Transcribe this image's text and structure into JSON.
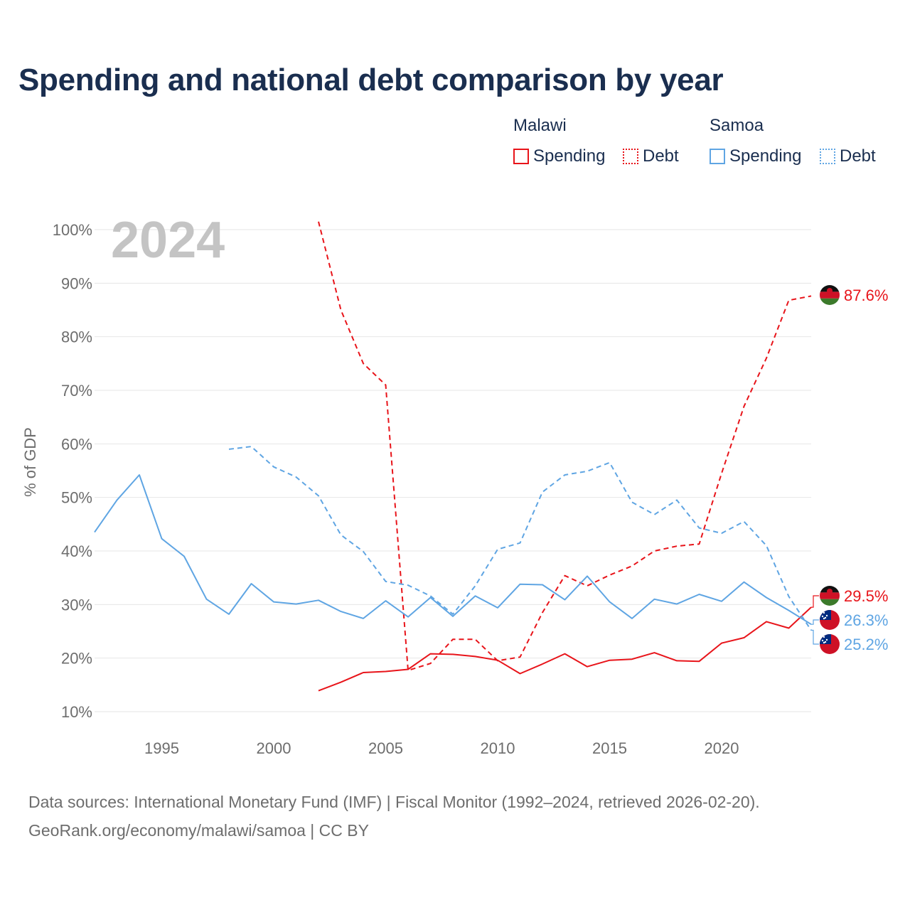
{
  "title": "Spending and national debt comparison by year",
  "legend": {
    "malawi": "Malawi",
    "samoa": "Samoa",
    "spending": "Spending",
    "debt": "Debt"
  },
  "sources": {
    "line1": "Data sources: International Monetary Fund (IMF) | Fiscal Monitor (1992–2024, retrieved 2026-02-20).",
    "line2": "GeoRank.org/economy/malawi/samoa | CC BY"
  },
  "chart_data": {
    "type": "line",
    "title": "Spending and national debt comparison by year",
    "year_label": "2024",
    "xlabel": "",
    "ylabel": "% of GDP",
    "xlim": [
      1992,
      2024
    ],
    "ylim": [
      10,
      100
    ],
    "xticks": [
      1995,
      2000,
      2005,
      2010,
      2015,
      2020
    ],
    "yticks": [
      10,
      20,
      30,
      40,
      50,
      60,
      70,
      80,
      90,
      100
    ],
    "grid": true,
    "colors": {
      "malawi": "#e8141a",
      "samoa": "#5fa5e3"
    },
    "series": [
      {
        "name": "Malawi Debt",
        "country": "malawi",
        "dashed": true,
        "x": [
          2002,
          2003,
          2004,
          2005,
          2006,
          2007,
          2008,
          2009,
          2010,
          2011,
          2012,
          2013,
          2014,
          2015,
          2016,
          2017,
          2018,
          2019,
          2020,
          2021,
          2022,
          2023,
          2024
        ],
        "values": [
          101.5,
          85,
          75,
          71,
          17.7,
          19,
          23.5,
          23.5,
          19.5,
          20.2,
          28.5,
          35.4,
          33.5,
          35.5,
          37.2,
          40,
          40.9,
          41.3,
          54.5,
          67,
          76,
          86.8,
          87.6
        ]
      },
      {
        "name": "Malawi Spending",
        "country": "malawi",
        "dashed": false,
        "x": [
          2002,
          2003,
          2004,
          2005,
          2006,
          2007,
          2008,
          2009,
          2010,
          2011,
          2012,
          2013,
          2014,
          2015,
          2016,
          2017,
          2018,
          2019,
          2020,
          2021,
          2022,
          2023,
          2024
        ],
        "values": [
          13.9,
          15.5,
          17.3,
          17.5,
          17.9,
          20.8,
          20.7,
          20.3,
          19.6,
          17.1,
          18.9,
          20.8,
          18.4,
          19.6,
          19.8,
          21,
          19.5,
          19.4,
          22.8,
          23.8,
          26.8,
          25.6,
          29.5
        ]
      },
      {
        "name": "Samoa Debt",
        "country": "samoa",
        "dashed": true,
        "x": [
          1998,
          1999,
          2000,
          2001,
          2002,
          2003,
          2004,
          2005,
          2006,
          2007,
          2008,
          2009,
          2010,
          2011,
          2012,
          2013,
          2014,
          2015,
          2016,
          2017,
          2018,
          2019,
          2020,
          2021,
          2022,
          2023,
          2024
        ],
        "values": [
          59,
          59.5,
          55.7,
          53.8,
          50.3,
          43,
          39.9,
          34.3,
          33.6,
          31.6,
          28.2,
          33.5,
          40.3,
          41.5,
          51,
          54.2,
          54.9,
          56.5,
          49.1,
          46.8,
          49.5,
          44.3,
          43.3,
          45.5,
          41,
          31.5,
          25.2
        ]
      },
      {
        "name": "Samoa Spending",
        "country": "samoa",
        "dashed": false,
        "x": [
          1992,
          1993,
          1994,
          1995,
          1996,
          1997,
          1998,
          1999,
          2000,
          2001,
          2002,
          2003,
          2004,
          2005,
          2006,
          2007,
          2008,
          2009,
          2010,
          2011,
          2012,
          2013,
          2014,
          2015,
          2016,
          2017,
          2018,
          2019,
          2020,
          2021,
          2022,
          2023,
          2024
        ],
        "values": [
          43.5,
          49.5,
          54.2,
          42.3,
          39,
          31,
          28.2,
          33.9,
          30.5,
          30.1,
          30.8,
          28.7,
          27.4,
          30.7,
          27.7,
          31.3,
          27.8,
          31.6,
          29.4,
          33.8,
          33.7,
          30.9,
          35.3,
          30.5,
          27.4,
          31,
          30.1,
          31.9,
          30.6,
          34.2,
          31.3,
          28.9,
          26.3
        ]
      }
    ],
    "end_labels": [
      {
        "text": "87.6%",
        "value": 87.6,
        "country": "malawi"
      },
      {
        "text": "29.5%",
        "value": 29.5,
        "country": "malawi"
      },
      {
        "text": "26.3%",
        "value": 26.3,
        "country": "samoa"
      },
      {
        "text": "25.2%",
        "value": 25.2,
        "country": "samoa"
      }
    ]
  }
}
